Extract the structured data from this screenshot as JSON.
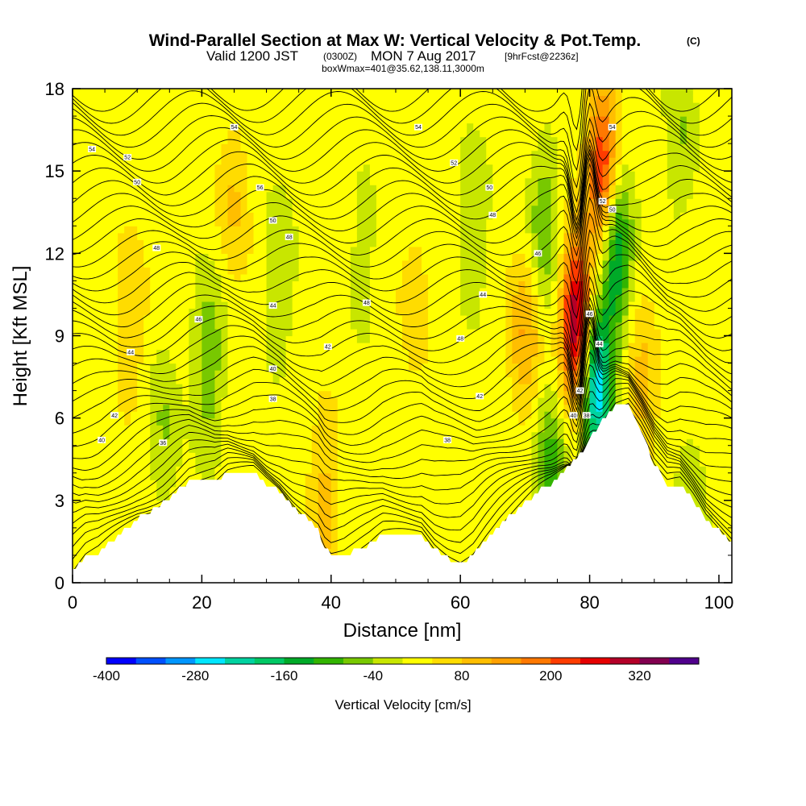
{
  "header": {
    "title": "Wind-Parallel Section at Max W: Vertical Velocity & Pot.Temp.",
    "title_mark": "(C)",
    "valid_prefix": "Valid 1200 JST",
    "valid_utc": "(0300Z)",
    "valid_date": "MON 7 Aug 2017",
    "valid_fcst": "[9hrFcst@2236z]",
    "box_line": "boxWmax=401@35.62,138.11,3000m"
  },
  "chart_data": {
    "type": "heatmap",
    "xlabel": "Distance [nm]",
    "ylabel": "Height [Kft MSL]",
    "xlim": [
      0,
      102
    ],
    "ylim": [
      0,
      18
    ],
    "x_ticks": [
      "0",
      "20",
      "40",
      "60",
      "80",
      "100"
    ],
    "y_ticks": [
      "0",
      "3",
      "6",
      "9",
      "12",
      "15",
      "18"
    ],
    "colorbar": {
      "label": "Vertical Velocity [cm/s]",
      "range": [
        -400,
        400
      ],
      "step": 40,
      "tick_labels": [
        "-400",
        "-280",
        "-160",
        "-40",
        "80",
        "200",
        "320"
      ],
      "colors": [
        "#0000ff",
        "#0050ff",
        "#0096ff",
        "#00e6ff",
        "#00d2a0",
        "#00c864",
        "#00aa28",
        "#32b400",
        "#78c800",
        "#c8e600",
        "#ffff00",
        "#ffdc00",
        "#ffbe00",
        "#ffa000",
        "#ff7800",
        "#ff3c00",
        "#e60000",
        "#b40028",
        "#820050",
        "#50008c"
      ]
    },
    "terrain_profile_kft": [
      [
        0,
        0.4
      ],
      [
        2,
        0.9
      ],
      [
        4,
        1.1
      ],
      [
        6,
        1.5
      ],
      [
        8,
        1.9
      ],
      [
        10,
        2.3
      ],
      [
        12,
        2.6
      ],
      [
        14,
        2.9
      ],
      [
        16,
        3.3
      ],
      [
        18,
        3.7
      ],
      [
        22,
        3.7
      ],
      [
        24,
        4.0
      ],
      [
        28,
        4.0
      ],
      [
        30,
        3.6
      ],
      [
        32,
        3.3
      ],
      [
        34,
        2.8
      ],
      [
        36,
        2.4
      ],
      [
        38,
        1.9
      ],
      [
        39,
        1.3
      ],
      [
        40,
        1.0
      ],
      [
        42,
        1.0
      ],
      [
        44,
        1.2
      ],
      [
        46,
        1.4
      ],
      [
        48,
        1.7
      ],
      [
        54,
        1.7
      ],
      [
        56,
        1.2
      ],
      [
        58,
        0.9
      ],
      [
        60,
        0.7
      ],
      [
        62,
        1.0
      ],
      [
        64,
        1.6
      ],
      [
        66,
        2.1
      ],
      [
        68,
        2.5
      ],
      [
        70,
        2.9
      ],
      [
        72,
        3.3
      ],
      [
        74,
        3.6
      ],
      [
        76,
        4.0
      ],
      [
        78,
        4.5
      ],
      [
        80,
        5.2
      ],
      [
        82,
        5.9
      ],
      [
        84,
        6.5
      ],
      [
        86,
        6.5
      ],
      [
        88,
        5.5
      ],
      [
        90,
        4.3
      ],
      [
        92,
        3.6
      ],
      [
        94,
        3.6
      ],
      [
        96,
        3.0
      ],
      [
        98,
        2.3
      ],
      [
        100,
        1.9
      ],
      [
        102,
        1.5
      ]
    ],
    "w_features_cms": [
      {
        "x": 9,
        "z": 9.5,
        "w": 60
      },
      {
        "x": 21,
        "z": 8,
        "w": -100
      },
      {
        "x": 14,
        "z": 5.5,
        "w": -60
      },
      {
        "x": 25,
        "z": 14,
        "w": 60
      },
      {
        "x": 32,
        "z": 11,
        "w": -60
      },
      {
        "x": 39,
        "z": 3,
        "w": 80
      },
      {
        "x": 45,
        "z": 12,
        "w": -40
      },
      {
        "x": 53,
        "z": 10.5,
        "w": 40
      },
      {
        "x": 62,
        "z": 13,
        "w": -60
      },
      {
        "x": 70,
        "z": 9,
        "w": 100
      },
      {
        "x": 73,
        "z": 13,
        "w": -100
      },
      {
        "x": 74,
        "z": 4,
        "w": -120
      },
      {
        "x": 78,
        "z": 9.5,
        "w": 320
      },
      {
        "x": 82,
        "z": 15,
        "w": 240
      },
      {
        "x": 81,
        "z": 7,
        "w": -300
      },
      {
        "x": 84,
        "z": 12,
        "w": -200
      },
      {
        "x": 88,
        "z": 7,
        "w": 80
      },
      {
        "x": 94,
        "z": 16,
        "w": -60
      },
      {
        "x": 96,
        "z": 3,
        "w": -40
      }
    ],
    "theta_levels_k": [
      30,
      31,
      32,
      33,
      34,
      35,
      36,
      37,
      38,
      39,
      40,
      41,
      42,
      43,
      44,
      45,
      46,
      47,
      48,
      49,
      50,
      51,
      52,
      53,
      54,
      55,
      56,
      57,
      58,
      59,
      60,
      61,
      62,
      63,
      64,
      65,
      66,
      67,
      68,
      69,
      70
    ],
    "contour_labels": [
      {
        "text": "40",
        "x": 4.5,
        "z": 5.2
      },
      {
        "text": "42",
        "x": 6.5,
        "z": 6.1
      },
      {
        "text": "44",
        "x": 9,
        "z": 8.4
      },
      {
        "text": "46",
        "x": 19.5,
        "z": 9.6
      },
      {
        "text": "48",
        "x": 13,
        "z": 12.2
      },
      {
        "text": "50",
        "x": 10,
        "z": 14.6
      },
      {
        "text": "52",
        "x": 8.5,
        "z": 15.5
      },
      {
        "text": "54",
        "x": 3,
        "z": 15.8
      },
      {
        "text": "54",
        "x": 25,
        "z": 16.6
      },
      {
        "text": "56",
        "x": 29,
        "z": 14.4
      },
      {
        "text": "50",
        "x": 31,
        "z": 13.2
      },
      {
        "text": "48",
        "x": 33.5,
        "z": 12.6
      },
      {
        "text": "44",
        "x": 31,
        "z": 10.1
      },
      {
        "text": "42",
        "x": 39.5,
        "z": 8.6
      },
      {
        "text": "40",
        "x": 31,
        "z": 7.8
      },
      {
        "text": "38",
        "x": 31,
        "z": 6.7
      },
      {
        "text": "36",
        "x": 14,
        "z": 5.1
      },
      {
        "text": "48",
        "x": 45.5,
        "z": 10.2
      },
      {
        "text": "48",
        "x": 60,
        "z": 8.9
      },
      {
        "text": "54",
        "x": 53.5,
        "z": 16.6
      },
      {
        "text": "52",
        "x": 59,
        "z": 15.3
      },
      {
        "text": "50",
        "x": 64.5,
        "z": 14.4
      },
      {
        "text": "48",
        "x": 65,
        "z": 13.4
      },
      {
        "text": "46",
        "x": 72,
        "z": 12.0
      },
      {
        "text": "44",
        "x": 63.5,
        "z": 10.5
      },
      {
        "text": "42",
        "x": 63,
        "z": 6.8
      },
      {
        "text": "38",
        "x": 58,
        "z": 5.2
      },
      {
        "text": "54",
        "x": 83.5,
        "z": 16.6
      },
      {
        "text": "52",
        "x": 82,
        "z": 13.9
      },
      {
        "text": "50",
        "x": 83.5,
        "z": 13.6
      },
      {
        "text": "46",
        "x": 80,
        "z": 9.8
      },
      {
        "text": "44",
        "x": 81.5,
        "z": 8.7
      },
      {
        "text": "42",
        "x": 78.5,
        "z": 7.0
      },
      {
        "text": "40",
        "x": 77.5,
        "z": 6.1
      },
      {
        "text": "38",
        "x": 79.5,
        "z": 6.1
      }
    ]
  }
}
